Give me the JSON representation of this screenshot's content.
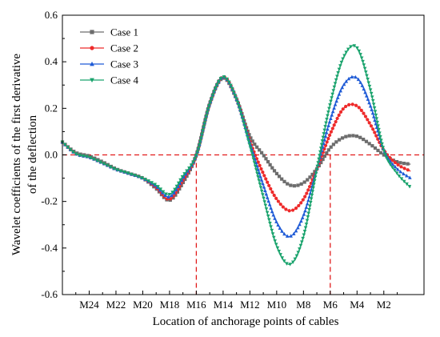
{
  "chart_data": {
    "type": "line",
    "xlabel": "Location of anchorage points of cables",
    "ylabel_line1": "Wavelet coefficients of the first  derivative",
    "ylabel_line2": "of the deflection",
    "ylim": [
      -0.6,
      0.6
    ],
    "yticks": [
      "0.6",
      "0.4",
      "0.2",
      "0.0",
      "-0.2",
      "-0.4",
      "-0.6"
    ],
    "xlim": [
      0,
      27
    ],
    "xticks": [
      {
        "label": "M24",
        "x": 2
      },
      {
        "label": "M22",
        "x": 4
      },
      {
        "label": "M20",
        "x": 6
      },
      {
        "label": "M18",
        "x": 8
      },
      {
        "label": "M16",
        "x": 10
      },
      {
        "label": "M14",
        "x": 12
      },
      {
        "label": "M12",
        "x": 14
      },
      {
        "label": "M10",
        "x": 16
      },
      {
        "label": "M8",
        "x": 18
      },
      {
        "label": "M6",
        "x": 20
      },
      {
        "label": "M4",
        "x": 22
      },
      {
        "label": "M2",
        "x": 24
      }
    ],
    "reference_lines": {
      "horizontal_y": 0.0,
      "vertical_x": [
        10,
        20
      ]
    },
    "legend_position": "top-left",
    "grid": false,
    "series": [
      {
        "name": "Case 1",
        "color": "#6d6d6d",
        "marker": "square",
        "x": [
          0,
          1,
          2,
          3,
          4,
          5,
          6,
          7,
          8,
          9,
          10,
          11,
          12,
          13,
          14,
          15,
          16,
          17,
          18,
          19,
          20,
          21,
          22,
          23,
          24,
          25,
          26
        ],
        "y": [
          0.055,
          0.01,
          -0.005,
          -0.03,
          -0.06,
          -0.08,
          -0.1,
          -0.145,
          -0.195,
          -0.12,
          0.0,
          0.22,
          0.33,
          0.24,
          0.08,
          0.0,
          -0.08,
          -0.13,
          -0.12,
          -0.06,
          0.03,
          0.075,
          0.08,
          0.045,
          0.0,
          -0.03,
          -0.04
        ]
      },
      {
        "name": "Case 2",
        "color": "#ee2b2b",
        "marker": "circle",
        "x": [
          0,
          1,
          2,
          3,
          4,
          5,
          6,
          7,
          8,
          9,
          10,
          11,
          12,
          13,
          14,
          15,
          16,
          17,
          18,
          19,
          20,
          21,
          22,
          23,
          24,
          25,
          26
        ],
        "y": [
          0.055,
          0.005,
          -0.01,
          -0.035,
          -0.062,
          -0.08,
          -0.1,
          -0.14,
          -0.19,
          -0.11,
          0.0,
          0.22,
          0.335,
          0.24,
          0.06,
          -0.08,
          -0.19,
          -0.24,
          -0.19,
          -0.06,
          0.09,
          0.2,
          0.21,
          0.13,
          0.02,
          -0.04,
          -0.07
        ]
      },
      {
        "name": "Case 3",
        "color": "#1f5bd6",
        "marker": "triangle-up",
        "x": [
          0,
          1,
          2,
          3,
          4,
          5,
          6,
          7,
          8,
          9,
          10,
          11,
          12,
          13,
          14,
          15,
          16,
          17,
          18,
          19,
          20,
          21,
          22,
          23,
          24,
          25,
          26
        ],
        "y": [
          0.055,
          0.005,
          -0.01,
          -0.035,
          -0.062,
          -0.08,
          -0.1,
          -0.135,
          -0.18,
          -0.1,
          0.0,
          0.22,
          0.335,
          0.24,
          0.05,
          -0.13,
          -0.29,
          -0.35,
          -0.26,
          -0.06,
          0.15,
          0.3,
          0.33,
          0.21,
          0.02,
          -0.06,
          -0.1
        ]
      },
      {
        "name": "Case 4",
        "color": "#1aa36d",
        "marker": "triangle-down",
        "x": [
          0,
          1,
          2,
          3,
          4,
          5,
          6,
          7,
          8,
          9,
          10,
          11,
          12,
          13,
          14,
          15,
          16,
          17,
          18,
          19,
          20,
          21,
          22,
          23,
          24,
          25,
          26
        ],
        "y": [
          0.055,
          0.005,
          -0.01,
          -0.035,
          -0.062,
          -0.08,
          -0.1,
          -0.13,
          -0.17,
          -0.09,
          0.0,
          0.22,
          0.335,
          0.24,
          0.04,
          -0.18,
          -0.39,
          -0.47,
          -0.35,
          -0.06,
          0.22,
          0.42,
          0.46,
          0.28,
          0.02,
          -0.08,
          -0.14
        ]
      }
    ]
  }
}
